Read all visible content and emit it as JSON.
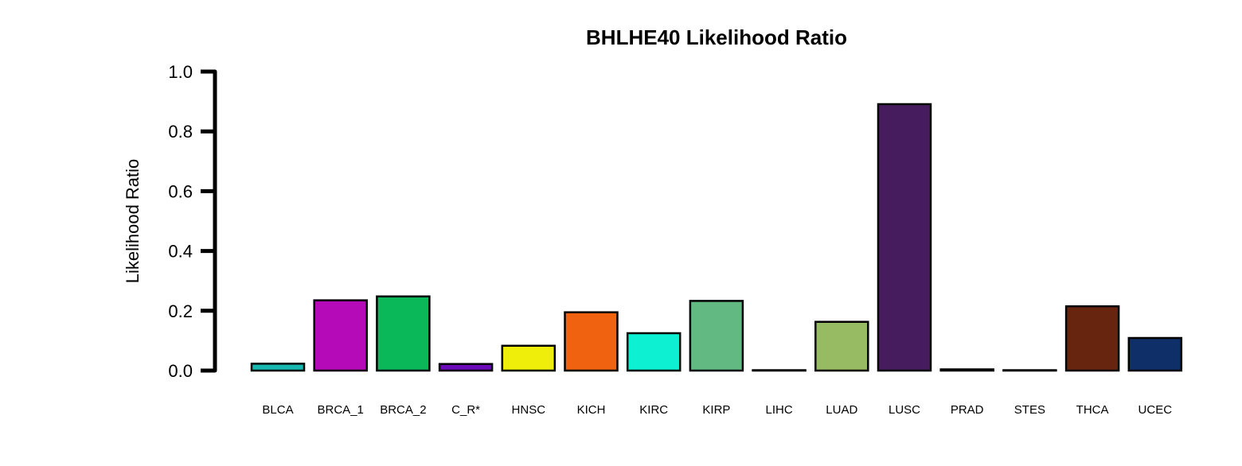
{
  "chart_data": {
    "type": "bar",
    "title": "BHLHE40 Likelihood Ratio",
    "xlabel": "",
    "ylabel": "Likelihood Ratio",
    "ylim": [
      0,
      1
    ],
    "yticks": [
      "0.0",
      "0.2",
      "0.4",
      "0.6",
      "0.8",
      "1.0"
    ],
    "grid": false,
    "categories": [
      "BLCA",
      "BRCA_1",
      "BRCA_2",
      "C_R*",
      "HNSC",
      "KICH",
      "KIRC",
      "KIRP",
      "LIHC",
      "LUAD",
      "LUSC",
      "PRAD",
      "STES",
      "THCA",
      "UCEC"
    ],
    "values": [
      0.023,
      0.235,
      0.248,
      0.022,
      0.083,
      0.195,
      0.125,
      0.233,
      0.0,
      0.163,
      0.891,
      0.004,
      0.0,
      0.215,
      0.109
    ],
    "colors": [
      "#17b8b0",
      "#b40ab8",
      "#0ab85a",
      "#6a0ab8",
      "#eeee0a",
      "#f0620f",
      "#0ef0d2",
      "#62ba82",
      "#000000",
      "#96bb62",
      "#461c5e",
      "#000000",
      "#000000",
      "#672510",
      "#0e2f68"
    ]
  }
}
